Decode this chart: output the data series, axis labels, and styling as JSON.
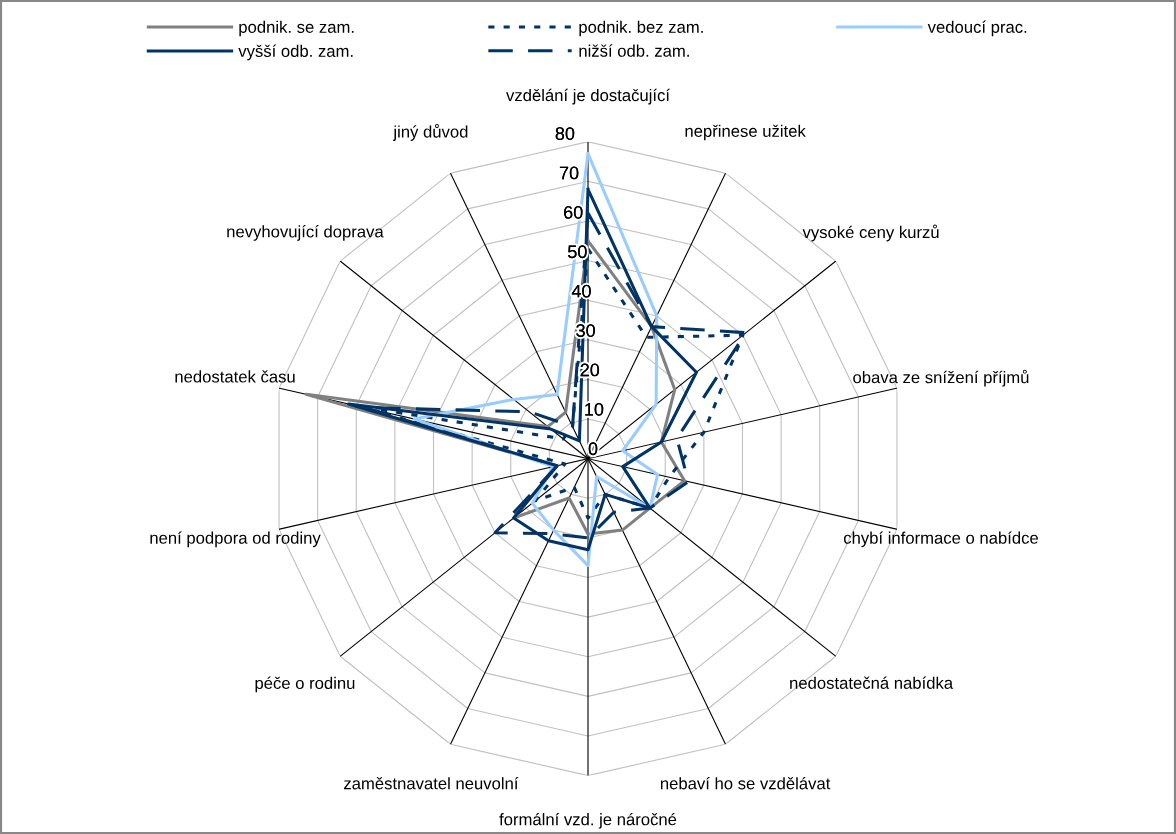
{
  "chart_data": {
    "type": "radar",
    "categories": [
      "vzdělání je dostačující",
      "nepřinese užitek",
      "vysoké ceny kurzů",
      "obava ze snížení příjmů",
      "chybí informace o nabídce",
      "nedostatečná nabídka",
      "nebaví ho se vzdělávat",
      "formální vzd. je náročné",
      "zaměstnavatel neuvolní",
      "péče o rodinu",
      "není podpora od rodiny",
      "nedostatek času",
      "nevyhovující doprava",
      "jiný důvod"
    ],
    "series": [
      {
        "name": "podnik. se zam.",
        "color": "#808080",
        "line_style": "solid",
        "values": [
          55,
          37,
          28,
          19,
          25,
          20,
          20,
          19,
          11,
          24,
          8,
          73,
          13,
          13
        ]
      },
      {
        "name": "podnik. bez zam.",
        "color": "#003366",
        "line_style": "dotted",
        "values": [
          53,
          34,
          50,
          30,
          21,
          20,
          10,
          15,
          8,
          17,
          6,
          60,
          8,
          9
        ]
      },
      {
        "name": "vedoucí prac.",
        "color": "#99ccff",
        "line_style": "solid",
        "values": [
          77,
          40,
          22,
          9,
          18,
          20,
          5,
          27,
          20,
          18,
          9,
          45,
          24,
          18
        ]
      },
      {
        "name": "vyšší odb. zam.",
        "color": "#003366",
        "line_style": "solid",
        "values": [
          68,
          37,
          35,
          19,
          9,
          20,
          10,
          23,
          23,
          24,
          8,
          62,
          12,
          5
        ]
      },
      {
        "name": "nižší odb. zam.",
        "color": "#003366",
        "line_style": "dashed",
        "values": [
          62,
          37,
          51,
          23,
          26,
          20,
          15,
          20,
          21,
          30,
          8,
          58,
          19,
          9
        ]
      }
    ],
    "ylim": [
      0,
      80
    ],
    "yticks": [
      0,
      10,
      20,
      30,
      40,
      50,
      60,
      70,
      80
    ],
    "grid": true,
    "legend": "top"
  }
}
